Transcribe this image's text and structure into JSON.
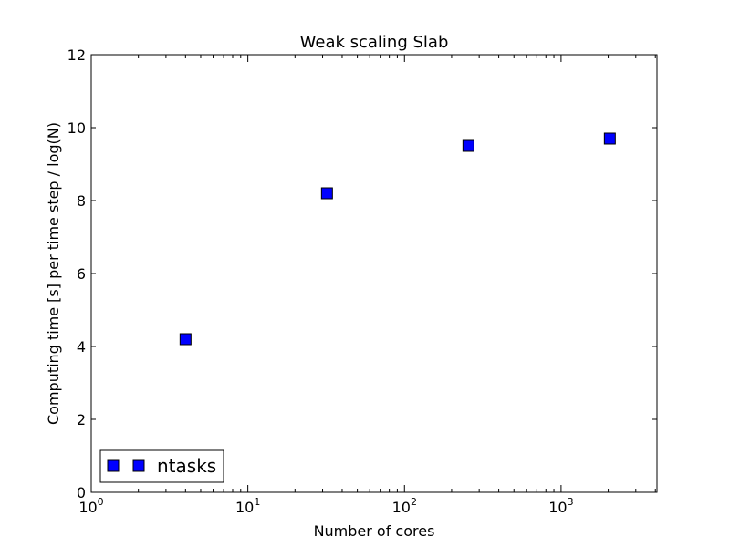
{
  "chart_data": {
    "type": "scatter",
    "title": "Weak scaling Slab",
    "xlabel": "Number of cores",
    "ylabel": "Computing time [s] per time step / log(N)",
    "xscale": "log",
    "xlim": [
      1,
      4096
    ],
    "ylim": [
      0,
      12
    ],
    "grid": false,
    "x_ticks": [
      {
        "value": 1,
        "base": "10",
        "exp": "0"
      },
      {
        "value": 10,
        "base": "10",
        "exp": "1"
      },
      {
        "value": 100,
        "base": "10",
        "exp": "2"
      },
      {
        "value": 1000,
        "base": "10",
        "exp": "3"
      }
    ],
    "y_ticks": [
      0,
      2,
      4,
      6,
      8,
      10,
      12
    ],
    "series": [
      {
        "name": "ntasks",
        "color": "#0000ff",
        "marker": "square",
        "x": [
          4,
          32,
          256,
          2048
        ],
        "y": [
          4.2,
          8.2,
          9.5,
          9.7
        ]
      }
    ],
    "legend": {
      "placement": "lower-left",
      "entries": [
        "ntasks"
      ]
    }
  }
}
